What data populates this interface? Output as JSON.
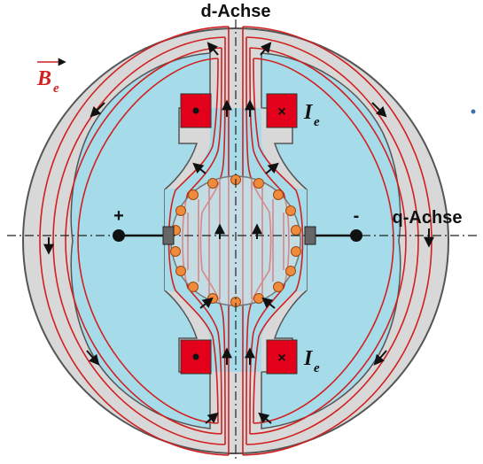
{
  "diagram": {
    "d_axis_label": "d-Achse",
    "q_axis_label": "q-Achse",
    "field_symbol": "B",
    "field_subscript": "e",
    "current_symbol": "I",
    "current_subscript": "e",
    "plus_sign": "+",
    "minus_sign": "-",
    "colors": {
      "yoke": "#d8d8d8",
      "pole": "#a6dcea",
      "rotor": "#dcdcdc",
      "field_lines": "#d21f1f",
      "coil": "#e3001b",
      "conductor": "#f08a3c",
      "brush": "#666666",
      "accent_dot": "#3b6db0"
    }
  }
}
